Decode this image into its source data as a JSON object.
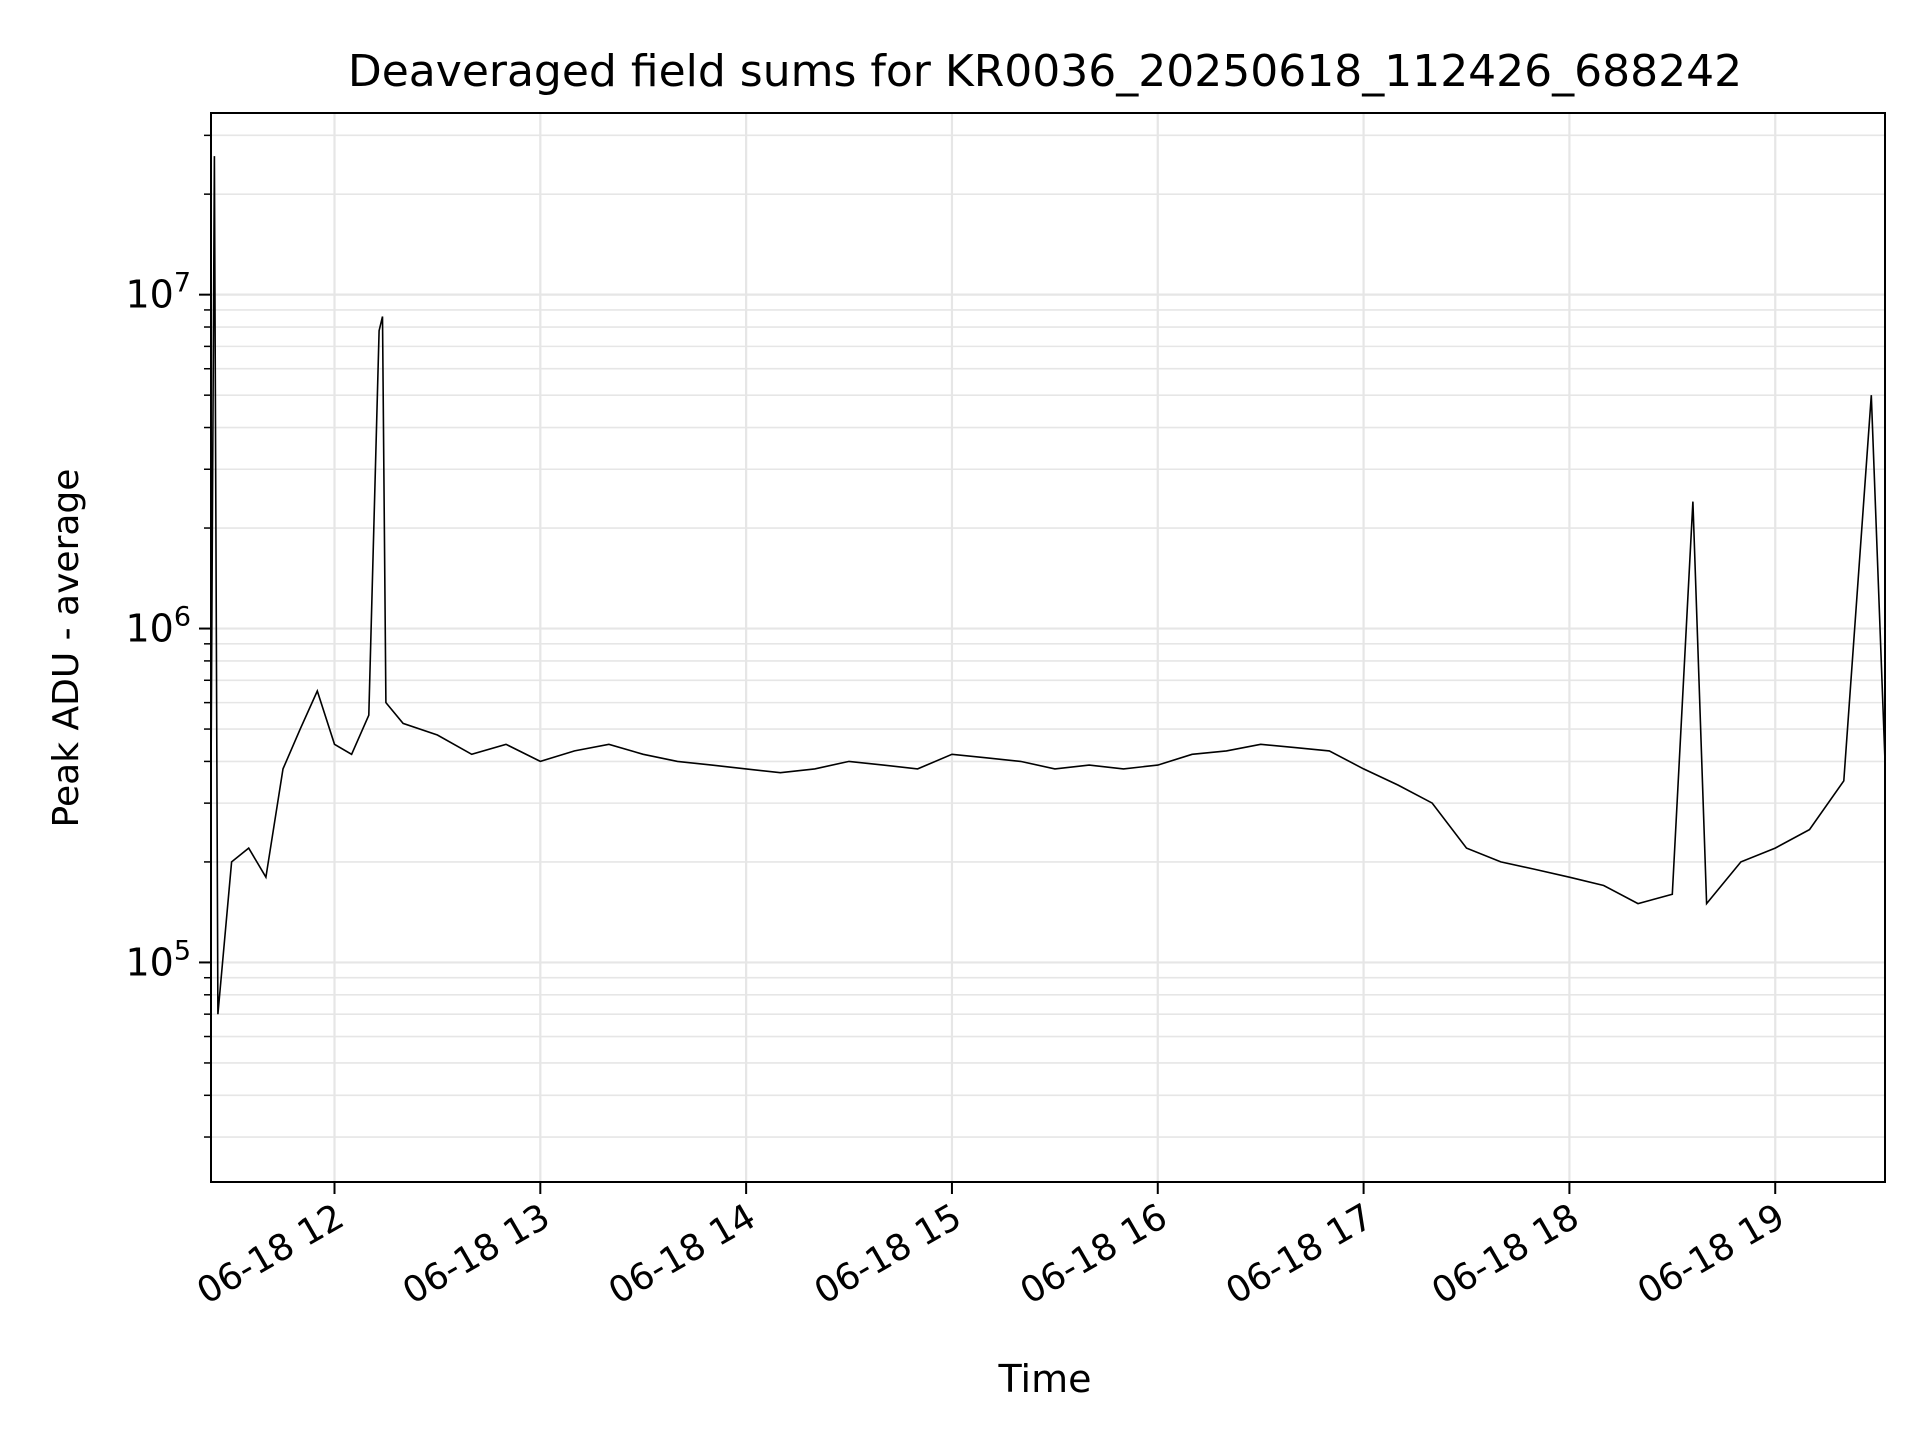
{
  "chart_data": {
    "type": "line",
    "title": "Deaveraged field sums for KR0036_20250618_112426_688242",
    "xlabel": "Time",
    "ylabel": "Peak ADU - average",
    "yscale": "log",
    "ylim": [
      22000,
      35000000
    ],
    "xlim": [
      "2025-06-18 11:24",
      "2025-06-18 19:32"
    ],
    "grid": true,
    "x_ticks": [
      {
        "at": "2025-06-18 12:00",
        "label": "06-18 12"
      },
      {
        "at": "2025-06-18 13:00",
        "label": "06-18 13"
      },
      {
        "at": "2025-06-18 14:00",
        "label": "06-18 14"
      },
      {
        "at": "2025-06-18 15:00",
        "label": "06-18 15"
      },
      {
        "at": "2025-06-18 16:00",
        "label": "06-18 16"
      },
      {
        "at": "2025-06-18 17:00",
        "label": "06-18 17"
      },
      {
        "at": "2025-06-18 18:00",
        "label": "06-18 18"
      },
      {
        "at": "2025-06-18 19:00",
        "label": "06-18 19"
      }
    ],
    "y_ticks": [
      {
        "value": 100000,
        "base": "10",
        "exp": "5"
      },
      {
        "value": 1000000,
        "base": "10",
        "exp": "6"
      },
      {
        "value": 10000000,
        "base": "10",
        "exp": "7"
      }
    ],
    "series": [
      {
        "color": "#000000",
        "x": [
          "2025-06-18 11:24",
          "2025-06-18 11:25",
          "2025-06-18 11:26",
          "2025-06-18 11:30",
          "2025-06-18 11:35",
          "2025-06-18 11:40",
          "2025-06-18 11:45",
          "2025-06-18 11:50",
          "2025-06-18 11:55",
          "2025-06-18 12:00",
          "2025-06-18 12:05",
          "2025-06-18 12:10",
          "2025-06-18 12:13",
          "2025-06-18 12:14",
          "2025-06-18 12:15",
          "2025-06-18 12:20",
          "2025-06-18 12:30",
          "2025-06-18 12:40",
          "2025-06-18 12:50",
          "2025-06-18 13:00",
          "2025-06-18 13:10",
          "2025-06-18 13:20",
          "2025-06-18 13:30",
          "2025-06-18 13:40",
          "2025-06-18 13:50",
          "2025-06-18 14:00",
          "2025-06-18 14:10",
          "2025-06-18 14:20",
          "2025-06-18 14:30",
          "2025-06-18 14:40",
          "2025-06-18 14:50",
          "2025-06-18 15:00",
          "2025-06-18 15:10",
          "2025-06-18 15:20",
          "2025-06-18 15:30",
          "2025-06-18 15:40",
          "2025-06-18 15:50",
          "2025-06-18 16:00",
          "2025-06-18 16:10",
          "2025-06-18 16:20",
          "2025-06-18 16:30",
          "2025-06-18 16:40",
          "2025-06-18 16:50",
          "2025-06-18 17:00",
          "2025-06-18 17:10",
          "2025-06-18 17:20",
          "2025-06-18 17:30",
          "2025-06-18 17:40",
          "2025-06-18 17:50",
          "2025-06-18 18:00",
          "2025-06-18 18:10",
          "2025-06-18 18:20",
          "2025-06-18 18:30",
          "2025-06-18 18:36",
          "2025-06-18 18:40",
          "2025-06-18 18:50",
          "2025-06-18 19:00",
          "2025-06-18 19:10",
          "2025-06-18 19:20",
          "2025-06-18 19:28",
          "2025-06-18 19:32"
        ],
        "y": [
          350000,
          26000000,
          70000,
          200000,
          220000,
          180000,
          380000,
          500000,
          650000,
          450000,
          420000,
          550000,
          7800000,
          8600000,
          600000,
          520000,
          480000,
          420000,
          450000,
          400000,
          430000,
          450000,
          420000,
          400000,
          390000,
          380000,
          370000,
          380000,
          400000,
          390000,
          380000,
          420000,
          410000,
          400000,
          380000,
          390000,
          380000,
          390000,
          420000,
          430000,
          450000,
          440000,
          430000,
          380000,
          340000,
          300000,
          220000,
          200000,
          190000,
          180000,
          170000,
          150000,
          160000,
          2400000,
          150000,
          200000,
          220000,
          250000,
          350000,
          5000000,
          400000
        ]
      }
    ]
  }
}
